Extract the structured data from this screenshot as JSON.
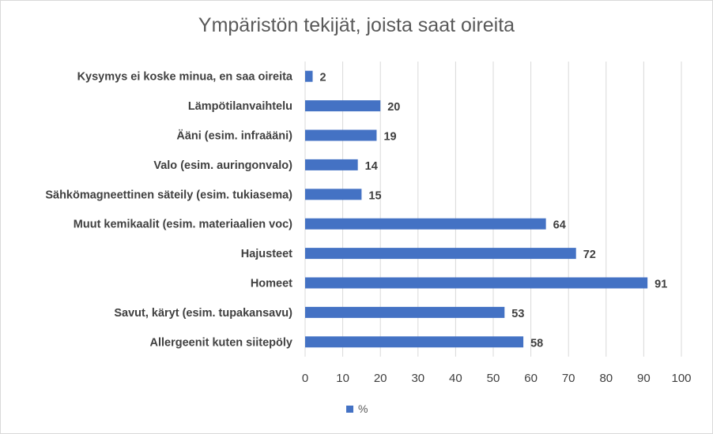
{
  "chart_data": {
    "type": "bar",
    "orientation": "horizontal",
    "title": "Ympäristön tekijät, joista saat oireita",
    "categories": [
      "Kysymys ei koske minua, en saa oireita",
      "Lämpötilanvaihtelu",
      "Ääni (esim. infraääni)",
      "Valo (esim. auringonvalo)",
      "Sähkömagneettinen säteily (esim. tukiasema)",
      "Muut kemikaalit (esim. materiaalien voc)",
      "Hajusteet",
      "Homeet",
      "Savut, käryt (esim. tupakansavu)",
      "Allergeenit kuten siitepöly"
    ],
    "series": [
      {
        "name": "%",
        "values": [
          2,
          20,
          19,
          14,
          15,
          64,
          72,
          91,
          53,
          58
        ],
        "color": "#4472c4"
      }
    ],
    "xlim": [
      0,
      100
    ],
    "xticks": [
      "0",
      "10",
      "20",
      "30",
      "40",
      "50",
      "60",
      "70",
      "80",
      "90",
      "100"
    ],
    "grid": true,
    "legend": "bottom"
  }
}
